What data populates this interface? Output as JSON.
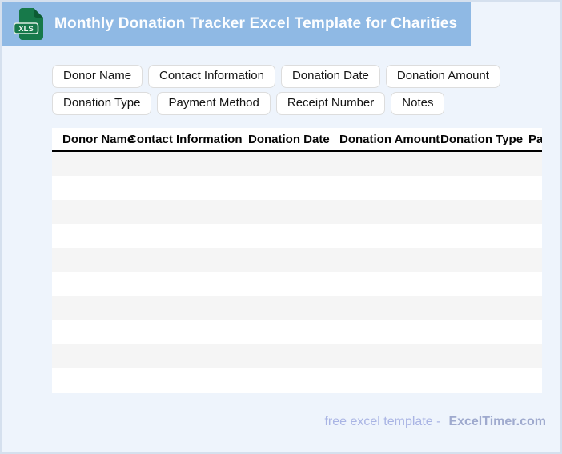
{
  "banner": {
    "title": "Monthly Donation Tracker Excel Template for Charities",
    "file_badge": "XLS"
  },
  "chips": [
    "Donor Name",
    "Contact Information",
    "Donation Date",
    "Donation Amount",
    "Donation Type",
    "Payment Method",
    "Receipt Number",
    "Notes"
  ],
  "table": {
    "columns": [
      "Donor Name",
      "Contact Information",
      "Donation Date",
      "Donation Amount",
      "Donation Type",
      "Payment Method"
    ],
    "empty_row_count": 10
  },
  "footer": {
    "tagline": "free excel template -",
    "brand": "ExcelTimer.com"
  },
  "colors": {
    "banner_bg": "#8FB9E4",
    "page_bg": "#EEF4FC",
    "icon_green": "#17794A",
    "icon_fold_green": "#0C5B34",
    "stripe": "#F5F5F5"
  }
}
